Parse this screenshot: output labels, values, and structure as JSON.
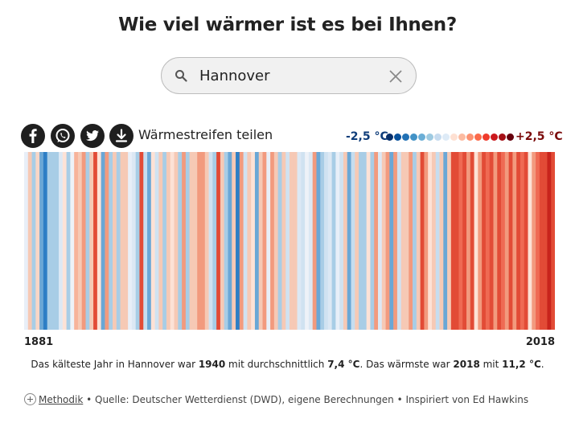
{
  "page": {
    "title": "Wie viel wärmer ist es bei Ihnen?"
  },
  "search": {
    "value": "Hannover",
    "search_icon": "search-icon",
    "clear_icon": "close-icon"
  },
  "share": {
    "label": "Wärmestreifen teilen",
    "buttons": [
      "facebook-icon",
      "whatsapp-icon",
      "twitter-icon",
      "download-icon"
    ]
  },
  "legend": {
    "low": "-2,5 °C",
    "high": "+2,5 °C",
    "colors": [
      "#08306b",
      "#08519c",
      "#2171b5",
      "#4292c6",
      "#6baed6",
      "#9ecae1",
      "#c6dbef",
      "#deebf7",
      "#fee0d2",
      "#fcbba1",
      "#fc9272",
      "#fb6a4a",
      "#ef3b2c",
      "#cb181d",
      "#a50f15",
      "#67000d"
    ]
  },
  "chart_data": {
    "type": "heatmap",
    "start_year": "1881",
    "end_year": "2018",
    "stripe_colors": [
      "#e8eff8",
      "#f6c9b5",
      "#a8cde6",
      "#f8d6c6",
      "#6aa7d6",
      "#2d7ec5",
      "#a8cde6",
      "#a8cde6",
      "#a8cde6",
      "#dce8f4",
      "#fde2d6",
      "#a8cde6",
      "#eef2f8",
      "#f7b39a",
      "#f6c9b5",
      "#f29a7e",
      "#a8cde6",
      "#f6c9b5",
      "#e24b36",
      "#fde2d6",
      "#6aa7d6",
      "#f29a7e",
      "#a8cde6",
      "#f6c9b5",
      "#a8cde6",
      "#f6c9b5",
      "#f6c9b5",
      "#e8eff8",
      "#dce8f4",
      "#a8cde6",
      "#e24b36",
      "#c6ddef",
      "#6aa7d6",
      "#fde2d6",
      "#d0e2f1",
      "#f6c9b5",
      "#a8cde6",
      "#f6c9b5",
      "#fde2d6",
      "#f6c9b5",
      "#a8cde6",
      "#f29a7e",
      "#a8cde6",
      "#f6c9b5",
      "#f6c9b5",
      "#f29a7e",
      "#f29a7e",
      "#f6c9b5",
      "#d0e2f1",
      "#a8cde6",
      "#e24b36",
      "#f6c9b5",
      "#a8cde6",
      "#6aa7d6",
      "#f6c9b5",
      "#2d7ec5",
      "#f29a7e",
      "#d0e2f1",
      "#f6c9b5",
      "#fde2d6",
      "#6aa7d6",
      "#f6c9b5",
      "#f29a7e",
      "#e8eff8",
      "#f29a7e",
      "#f6c9b5",
      "#a8cde6",
      "#f6c9b5",
      "#d0e2f1",
      "#f6c9b5",
      "#f6c9b5",
      "#dce8f4",
      "#d0e2f1",
      "#eef2f8",
      "#dce8f4",
      "#f29a7e",
      "#6aa7d6",
      "#a8cde6",
      "#d0e2f1",
      "#dce8f4",
      "#a8cde6",
      "#e8eff8",
      "#d0e2f1",
      "#f6c9b5",
      "#6aa7d6",
      "#c6ddef",
      "#f6c9b5",
      "#a8cde6",
      "#a8cde6",
      "#fde2d6",
      "#a8cde6",
      "#f29a7e",
      "#dce8f4",
      "#f6c9b5",
      "#f29a7e",
      "#6aa7d6",
      "#f29a7e",
      "#d0e2f1",
      "#f6c9b5",
      "#f6c9b5",
      "#f29a7e",
      "#a8cde6",
      "#f6c9b5",
      "#e24b36",
      "#f29a7e",
      "#fde2d6",
      "#f6c9b5",
      "#c6ddef",
      "#f6c9b5",
      "#6aa7d6",
      "#f6c9b5",
      "#e24b36",
      "#e24b36",
      "#ef6a53",
      "#e24b36",
      "#f29a7e",
      "#e24b36",
      "#fde2d6",
      "#f29a7e",
      "#e24b36",
      "#ef6a53",
      "#e24b36",
      "#f29a7e",
      "#e24b36",
      "#ef6a53",
      "#f29a7e",
      "#e24b36",
      "#f29a7e",
      "#e24b36",
      "#ef6a53",
      "#e24b36",
      "#fde2d6",
      "#f29a7e",
      "#ef6a53",
      "#e24b36",
      "#e24b36",
      "#c8241c",
      "#e24b36"
    ]
  },
  "summary": {
    "p1": "Das kälteste Jahr in Hannover war ",
    "cold_year": "1940",
    "p2": " mit durchschnittlich ",
    "cold_temp": "7,4 °C",
    "p3": ". Das wärmste war ",
    "warm_year": "2018",
    "p4": " mit ",
    "warm_temp": "11,2 °C",
    "p5": "."
  },
  "footer": {
    "method_link": "Methodik",
    "source": " • Quelle: Deutscher Wetterdienst (DWD), eigene Berechnungen • Inspiriert von Ed Hawkins"
  }
}
